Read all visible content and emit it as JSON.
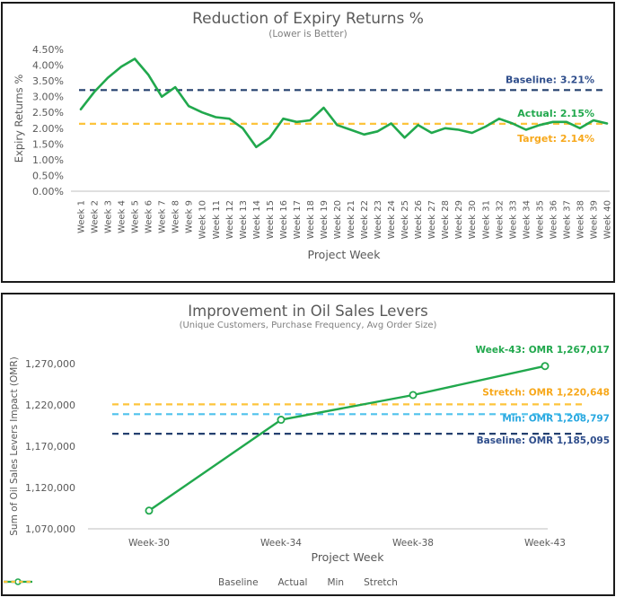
{
  "report": {
    "panel_border_color": "#1a1a1a",
    "text_gray": "#595959",
    "subtitle_gray": "#7f7f7f",
    "axis_line_gray": "#cccccc"
  },
  "chart_data": [
    {
      "type": "line",
      "title": "Reduction of Expiry Returns %",
      "subtitle": "(Lower is Better)",
      "xlabel": "Project Week",
      "ylabel": "Expiry Returns %",
      "ylim": [
        0,
        4.5
      ],
      "y_ticks": [
        "0.00%",
        "0.50%",
        "1.00%",
        "1.50%",
        "2.00%",
        "2.50%",
        "3.00%",
        "3.50%",
        "4.00%",
        "4.50%"
      ],
      "x_tick_rotation": 90,
      "grid": false,
      "categories": [
        "Week 1",
        "Week 2",
        "Week 3",
        "Week 4",
        "Week 5",
        "Week 6",
        "Week 7",
        "Week 8",
        "Week 9",
        "Week 10",
        "Week 11",
        "Week 12",
        "Week 13",
        "Week 14",
        "Week 15",
        "Week 16",
        "Week 17",
        "Week 18",
        "Week 19",
        "Week 20",
        "Week 21",
        "Week 22",
        "Week 23",
        "Week 24",
        "Week 25",
        "Week 26",
        "Week 27",
        "Week 28",
        "Week 29",
        "Week 30",
        "Week 31",
        "Week 32",
        "Week 33",
        "Week 34",
        "Week 35",
        "Week 36",
        "Week 37",
        "Week 38",
        "Week 39",
        "Week 40"
      ],
      "series": [
        {
          "name": "Actual",
          "color": "#21A84D",
          "marker": "none",
          "values": [
            2.6,
            3.15,
            3.6,
            3.95,
            4.2,
            3.7,
            3.0,
            3.3,
            2.7,
            2.5,
            2.35,
            2.3,
            2.0,
            1.4,
            1.7,
            2.3,
            2.2,
            2.25,
            2.65,
            2.1,
            1.95,
            1.8,
            1.9,
            2.15,
            1.7,
            2.1,
            1.85,
            2.0,
            1.95,
            1.85,
            2.05,
            2.3,
            2.15,
            1.95,
            2.1,
            2.2,
            2.2,
            2.0,
            2.25,
            2.15
          ]
        }
      ],
      "ref_lines": [
        {
          "name": "Baseline",
          "value": 3.21,
          "label": "Baseline: 3.21%",
          "line_color": "#25406F",
          "text_color": "#2F4E8C",
          "style": "dashed"
        },
        {
          "name": "Target",
          "value": 2.14,
          "label": "Target: 2.14%",
          "line_color": "#FDC43C",
          "text_color": "#F7A81B",
          "style": "dashed"
        }
      ],
      "annotation": {
        "text": "Actual: 2.15%",
        "color": "#21A84D"
      }
    },
    {
      "type": "line",
      "title": "Improvement in Oil Sales Levers",
      "subtitle": "(Unique Customers, Purchase Frequency, Avg Order Size)",
      "xlabel": "Project Week",
      "ylabel": "Sum of Oil Sales Levers Impact (OMR)",
      "ylim": [
        1070000,
        1270000
      ],
      "y_ticks": [
        "1,070,000",
        "1,120,000",
        "1,170,000",
        "1,220,000",
        "1,270,000"
      ],
      "x_tick_rotation": 0,
      "grid": false,
      "categories": [
        "Week-30",
        "Week-34",
        "Week-38",
        "Week-43"
      ],
      "series": [
        {
          "name": "Actual",
          "color": "#21A84D",
          "marker": "circle-open",
          "values": [
            1092000,
            1202000,
            1232000,
            1267017
          ]
        }
      ],
      "ref_lines": [
        {
          "name": "Baseline",
          "value": 1185095,
          "label": "Baseline: OMR 1,185,095",
          "line_color": "#25406F",
          "text_color": "#2F4E8C",
          "style": "dashed"
        },
        {
          "name": "Min",
          "value": 1208797,
          "label": "Min: OMR 1,208,797",
          "line_color": "#4FC2EC",
          "text_color": "#29A8E0",
          "style": "dashed"
        },
        {
          "name": "Stretch",
          "value": 1220648,
          "label": "Stretch: OMR 1,220,648",
          "line_color": "#FDC43C",
          "text_color": "#F7A81B",
          "style": "dashed"
        }
      ],
      "annotation": {
        "text": "Week-43: OMR 1,267,017",
        "color": "#21A84D"
      },
      "legend": [
        {
          "label": "Baseline",
          "style": "dashed",
          "color": "#25406F"
        },
        {
          "label": "Actual",
          "style": "line-marker",
          "color": "#21A84D"
        },
        {
          "label": "Min",
          "style": "dashed",
          "color": "#4FC2EC"
        },
        {
          "label": "Stretch",
          "style": "dashed",
          "color": "#FDC43C"
        }
      ]
    }
  ]
}
